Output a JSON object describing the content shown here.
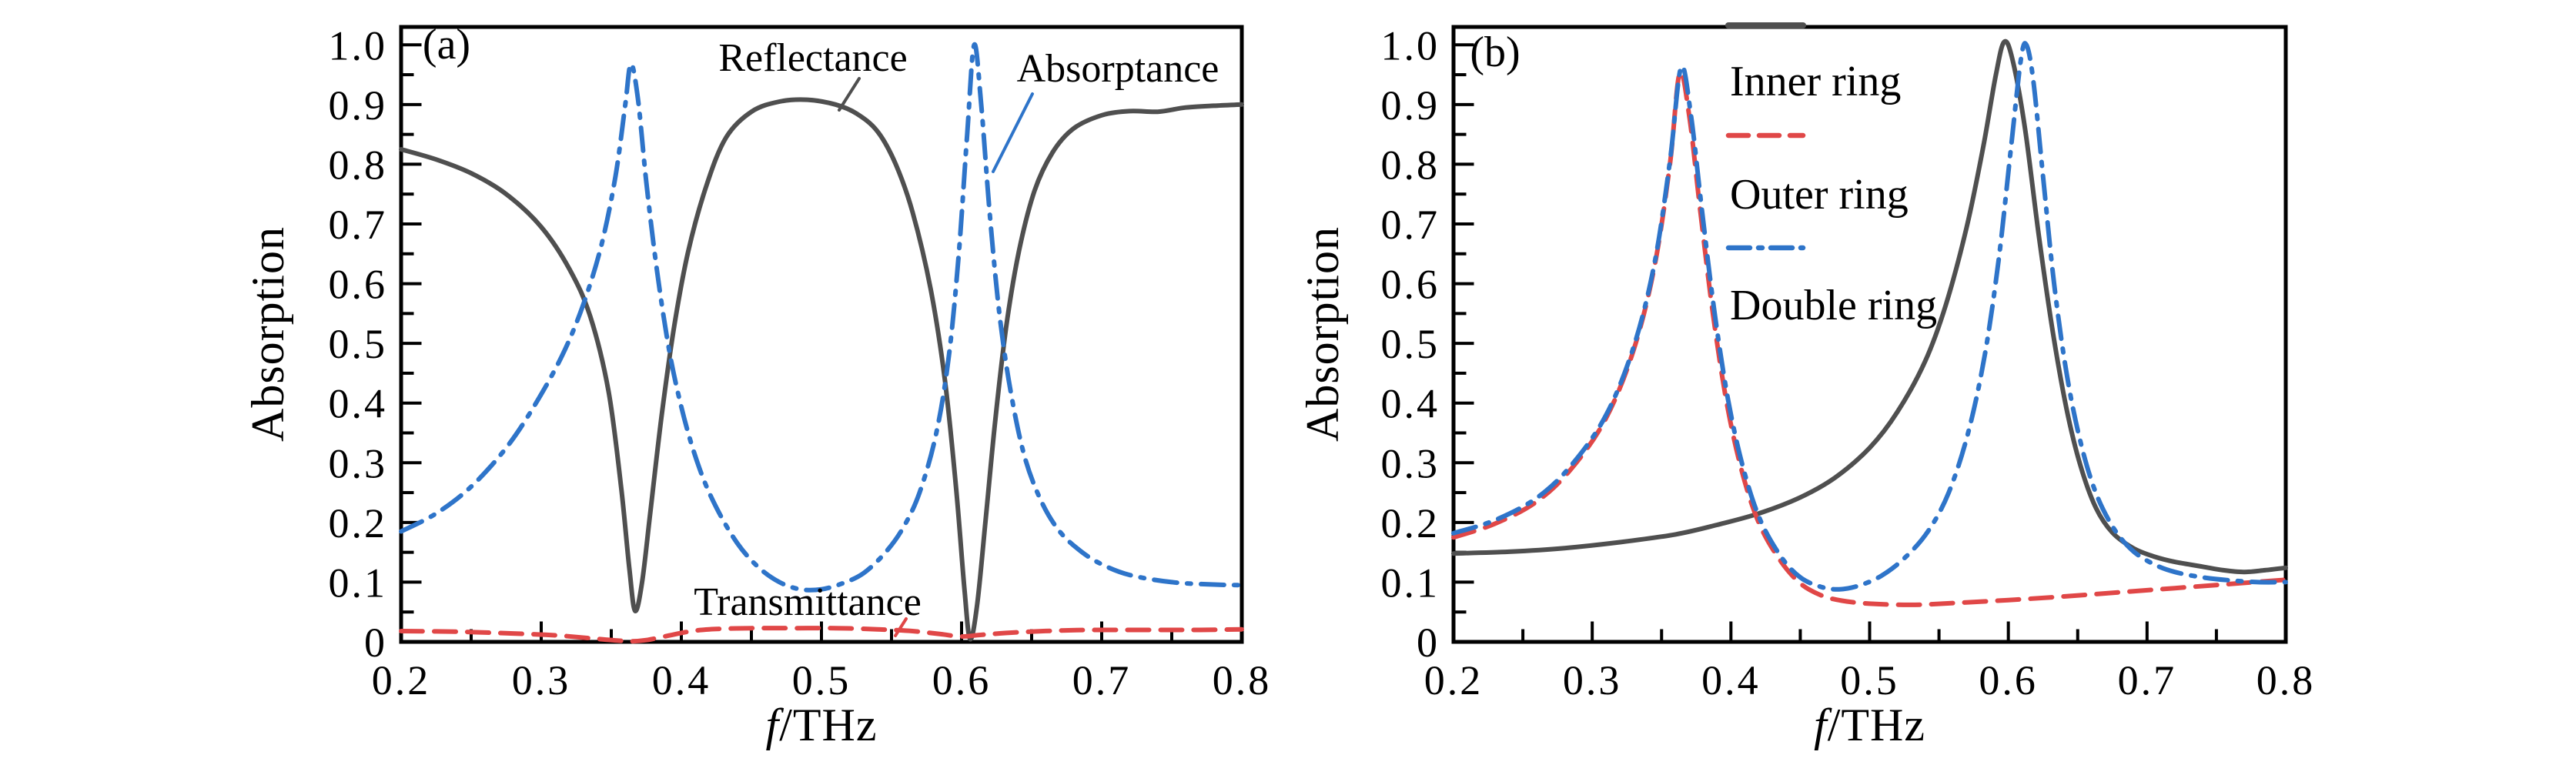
{
  "figure": {
    "panels": [
      {
        "tag": "(a)",
        "ylabel": "Absorption",
        "xlabel_italic": "f",
        "xlabel_rest": "/THz",
        "xticks": [
          "0.2",
          "0.3",
          "0.4",
          "0.5",
          "0.6",
          "0.7",
          "0.8"
        ],
        "yticks": [
          "0",
          "0.1",
          "0.2",
          "0.3",
          "0.4",
          "0.5",
          "0.6",
          "0.7",
          "0.8",
          "0.9",
          "1.0"
        ],
        "annotations": [
          {
            "label": "Reflectance",
            "color": "#4f4f4f"
          },
          {
            "label": "Absorptance",
            "color": "#2e74c9"
          },
          {
            "label": "Transmittance",
            "color": "#e04747"
          }
        ]
      },
      {
        "tag": "(b)",
        "ylabel": "Absorption",
        "xlabel_italic": "f",
        "xlabel_rest": "/THz",
        "xticks": [
          "0.2",
          "0.3",
          "0.4",
          "0.5",
          "0.6",
          "0.7",
          "0.8"
        ],
        "yticks": [
          "0",
          "0.1",
          "0.2",
          "0.3",
          "0.4",
          "0.5",
          "0.6",
          "0.7",
          "0.8",
          "0.9",
          "1.0"
        ],
        "legend": [
          {
            "label": "Inner ring",
            "color": "#4f4f4f",
            "style": "solid"
          },
          {
            "label": "Outer ring",
            "color": "#e04747",
            "style": "dashed"
          },
          {
            "label": "Double ring",
            "color": "#2e74c9",
            "style": "dashdot"
          }
        ]
      }
    ],
    "colors": {
      "gray": "#4f4f4f",
      "red": "#e04747",
      "blue": "#2e74c9",
      "axis": "#000000"
    }
  },
  "chart_data": [
    {
      "type": "line",
      "title": "(a)",
      "xlabel": "f/THz",
      "ylabel": "Absorption",
      "xlim": [
        0.2,
        0.8
      ],
      "ylim": [
        0,
        1.03
      ],
      "grid": false,
      "legend_position": "none",
      "series": [
        {
          "name": "Reflectance",
          "color": "#4f4f4f",
          "style": "solid",
          "points": [
            [
              0.2,
              0.825
            ],
            [
              0.225,
              0.808
            ],
            [
              0.25,
              0.785
            ],
            [
              0.275,
              0.75
            ],
            [
              0.3,
              0.695
            ],
            [
              0.32,
              0.625
            ],
            [
              0.335,
              0.545
            ],
            [
              0.348,
              0.42
            ],
            [
              0.357,
              0.26
            ],
            [
              0.363,
              0.12
            ],
            [
              0.367,
              0.052
            ],
            [
              0.372,
              0.1
            ],
            [
              0.378,
              0.22
            ],
            [
              0.386,
              0.38
            ],
            [
              0.395,
              0.53
            ],
            [
              0.405,
              0.655
            ],
            [
              0.418,
              0.765
            ],
            [
              0.432,
              0.845
            ],
            [
              0.45,
              0.888
            ],
            [
              0.47,
              0.905
            ],
            [
              0.49,
              0.908
            ],
            [
              0.51,
              0.9
            ],
            [
              0.525,
              0.885
            ],
            [
              0.54,
              0.855
            ],
            [
              0.553,
              0.8
            ],
            [
              0.565,
              0.72
            ],
            [
              0.578,
              0.59
            ],
            [
              0.588,
              0.44
            ],
            [
              0.596,
              0.26
            ],
            [
              0.602,
              0.09
            ],
            [
              0.606,
              0.005
            ],
            [
              0.611,
              0.06
            ],
            [
              0.617,
              0.2
            ],
            [
              0.624,
              0.37
            ],
            [
              0.632,
              0.53
            ],
            [
              0.641,
              0.655
            ],
            [
              0.652,
              0.755
            ],
            [
              0.665,
              0.82
            ],
            [
              0.68,
              0.86
            ],
            [
              0.7,
              0.882
            ],
            [
              0.72,
              0.889
            ],
            [
              0.74,
              0.888
            ],
            [
              0.76,
              0.895
            ],
            [
              0.78,
              0.898
            ],
            [
              0.8,
              0.9
            ]
          ]
        },
        {
          "name": "Absorptance",
          "color": "#2e74c9",
          "style": "dashdot",
          "points": [
            [
              0.2,
              0.185
            ],
            [
              0.225,
              0.215
            ],
            [
              0.25,
              0.26
            ],
            [
              0.275,
              0.325
            ],
            [
              0.295,
              0.395
            ],
            [
              0.315,
              0.48
            ],
            [
              0.33,
              0.565
            ],
            [
              0.343,
              0.665
            ],
            [
              0.353,
              0.78
            ],
            [
              0.36,
              0.9
            ],
            [
              0.364,
              0.968
            ],
            [
              0.369,
              0.91
            ],
            [
              0.375,
              0.77
            ],
            [
              0.383,
              0.615
            ],
            [
              0.392,
              0.48
            ],
            [
              0.402,
              0.375
            ],
            [
              0.413,
              0.29
            ],
            [
              0.425,
              0.225
            ],
            [
              0.44,
              0.165
            ],
            [
              0.455,
              0.125
            ],
            [
              0.47,
              0.1
            ],
            [
              0.485,
              0.088
            ],
            [
              0.5,
              0.088
            ],
            [
              0.515,
              0.098
            ],
            [
              0.53,
              0.115
            ],
            [
              0.545,
              0.148
            ],
            [
              0.558,
              0.19
            ],
            [
              0.57,
              0.25
            ],
            [
              0.582,
              0.35
            ],
            [
              0.591,
              0.48
            ],
            [
              0.598,
              0.65
            ],
            [
              0.604,
              0.85
            ],
            [
              0.609,
              1.0
            ],
            [
              0.614,
              0.9
            ],
            [
              0.62,
              0.72
            ],
            [
              0.627,
              0.55
            ],
            [
              0.635,
              0.42
            ],
            [
              0.645,
              0.31
            ],
            [
              0.657,
              0.235
            ],
            [
              0.67,
              0.185
            ],
            [
              0.685,
              0.152
            ],
            [
              0.7,
              0.13
            ],
            [
              0.72,
              0.112
            ],
            [
              0.75,
              0.1
            ],
            [
              0.78,
              0.096
            ],
            [
              0.8,
              0.095
            ]
          ]
        },
        {
          "name": "Transmittance",
          "color": "#e04747",
          "style": "dashed",
          "points": [
            [
              0.2,
              0.018
            ],
            [
              0.24,
              0.017
            ],
            [
              0.28,
              0.014
            ],
            [
              0.31,
              0.011
            ],
            [
              0.335,
              0.006
            ],
            [
              0.355,
              0.002
            ],
            [
              0.365,
              0.001
            ],
            [
              0.375,
              0.003
            ],
            [
              0.39,
              0.01
            ],
            [
              0.405,
              0.017
            ],
            [
              0.42,
              0.021
            ],
            [
              0.45,
              0.023
            ],
            [
              0.48,
              0.023
            ],
            [
              0.51,
              0.023
            ],
            [
              0.54,
              0.021
            ],
            [
              0.565,
              0.018
            ],
            [
              0.585,
              0.013
            ],
            [
              0.6,
              0.009
            ],
            [
              0.615,
              0.012
            ],
            [
              0.64,
              0.016
            ],
            [
              0.67,
              0.019
            ],
            [
              0.7,
              0.02
            ],
            [
              0.74,
              0.02
            ],
            [
              0.77,
              0.02
            ],
            [
              0.8,
              0.021
            ]
          ]
        }
      ]
    },
    {
      "type": "line",
      "title": "(b)",
      "xlabel": "f/THz",
      "ylabel": "Absorption",
      "xlim": [
        0.2,
        0.8
      ],
      "ylim": [
        0,
        1.03
      ],
      "grid": false,
      "legend_position": "top-inside",
      "series": [
        {
          "name": "Inner ring",
          "color": "#4f4f4f",
          "style": "solid",
          "points": [
            [
              0.2,
              0.148
            ],
            [
              0.24,
              0.151
            ],
            [
              0.28,
              0.157
            ],
            [
              0.32,
              0.167
            ],
            [
              0.36,
              0.18
            ],
            [
              0.39,
              0.196
            ],
            [
              0.42,
              0.215
            ],
            [
              0.45,
              0.242
            ],
            [
              0.475,
              0.275
            ],
            [
              0.5,
              0.325
            ],
            [
              0.52,
              0.385
            ],
            [
              0.54,
              0.47
            ],
            [
              0.555,
              0.565
            ],
            [
              0.57,
              0.695
            ],
            [
              0.582,
              0.83
            ],
            [
              0.591,
              0.95
            ],
            [
              0.597,
              1.005
            ],
            [
              0.603,
              0.975
            ],
            [
              0.612,
              0.86
            ],
            [
              0.622,
              0.68
            ],
            [
              0.632,
              0.52
            ],
            [
              0.642,
              0.39
            ],
            [
              0.652,
              0.295
            ],
            [
              0.663,
              0.225
            ],
            [
              0.675,
              0.183
            ],
            [
              0.69,
              0.157
            ],
            [
              0.705,
              0.143
            ],
            [
              0.72,
              0.134
            ],
            [
              0.74,
              0.126
            ],
            [
              0.755,
              0.12
            ],
            [
              0.77,
              0.117
            ],
            [
              0.785,
              0.12
            ],
            [
              0.8,
              0.124
            ]
          ]
        },
        {
          "name": "Outer ring",
          "color": "#e04747",
          "style": "dashed",
          "points": [
            [
              0.2,
              0.175
            ],
            [
              0.23,
              0.198
            ],
            [
              0.26,
              0.235
            ],
            [
              0.285,
              0.29
            ],
            [
              0.31,
              0.375
            ],
            [
              0.33,
              0.49
            ],
            [
              0.345,
              0.63
            ],
            [
              0.356,
              0.8
            ],
            [
              0.363,
              0.952
            ],
            [
              0.37,
              0.88
            ],
            [
              0.378,
              0.72
            ],
            [
              0.387,
              0.55
            ],
            [
              0.397,
              0.4
            ],
            [
              0.408,
              0.285
            ],
            [
              0.42,
              0.2
            ],
            [
              0.435,
              0.138
            ],
            [
              0.45,
              0.098
            ],
            [
              0.465,
              0.078
            ],
            [
              0.48,
              0.069
            ],
            [
              0.5,
              0.064
            ],
            [
              0.53,
              0.062
            ],
            [
              0.56,
              0.065
            ],
            [
              0.6,
              0.07
            ],
            [
              0.64,
              0.076
            ],
            [
              0.68,
              0.083
            ],
            [
              0.72,
              0.09
            ],
            [
              0.76,
              0.097
            ],
            [
              0.8,
              0.104
            ]
          ]
        },
        {
          "name": "Double ring",
          "color": "#2e74c9",
          "style": "dashdot",
          "points": [
            [
              0.2,
              0.182
            ],
            [
              0.23,
              0.204
            ],
            [
              0.26,
              0.241
            ],
            [
              0.285,
              0.296
            ],
            [
              0.31,
              0.38
            ],
            [
              0.33,
              0.495
            ],
            [
              0.345,
              0.635
            ],
            [
              0.356,
              0.805
            ],
            [
              0.364,
              0.962
            ],
            [
              0.371,
              0.885
            ],
            [
              0.379,
              0.725
            ],
            [
              0.388,
              0.555
            ],
            [
              0.398,
              0.405
            ],
            [
              0.409,
              0.29
            ],
            [
              0.421,
              0.205
            ],
            [
              0.436,
              0.143
            ],
            [
              0.45,
              0.108
            ],
            [
              0.465,
              0.092
            ],
            [
              0.478,
              0.088
            ],
            [
              0.492,
              0.094
            ],
            [
              0.508,
              0.11
            ],
            [
              0.525,
              0.14
            ],
            [
              0.542,
              0.185
            ],
            [
              0.557,
              0.25
            ],
            [
              0.571,
              0.35
            ],
            [
              0.583,
              0.48
            ],
            [
              0.593,
              0.64
            ],
            [
              0.602,
              0.83
            ],
            [
              0.609,
              0.975
            ],
            [
              0.613,
              1.0
            ],
            [
              0.618,
              0.94
            ],
            [
              0.625,
              0.78
            ],
            [
              0.633,
              0.6
            ],
            [
              0.642,
              0.45
            ],
            [
              0.652,
              0.335
            ],
            [
              0.663,
              0.25
            ],
            [
              0.676,
              0.19
            ],
            [
              0.69,
              0.152
            ],
            [
              0.705,
              0.13
            ],
            [
              0.72,
              0.117
            ],
            [
              0.74,
              0.108
            ],
            [
              0.76,
              0.103
            ],
            [
              0.78,
              0.1
            ],
            [
              0.8,
              0.1
            ]
          ]
        }
      ]
    }
  ]
}
